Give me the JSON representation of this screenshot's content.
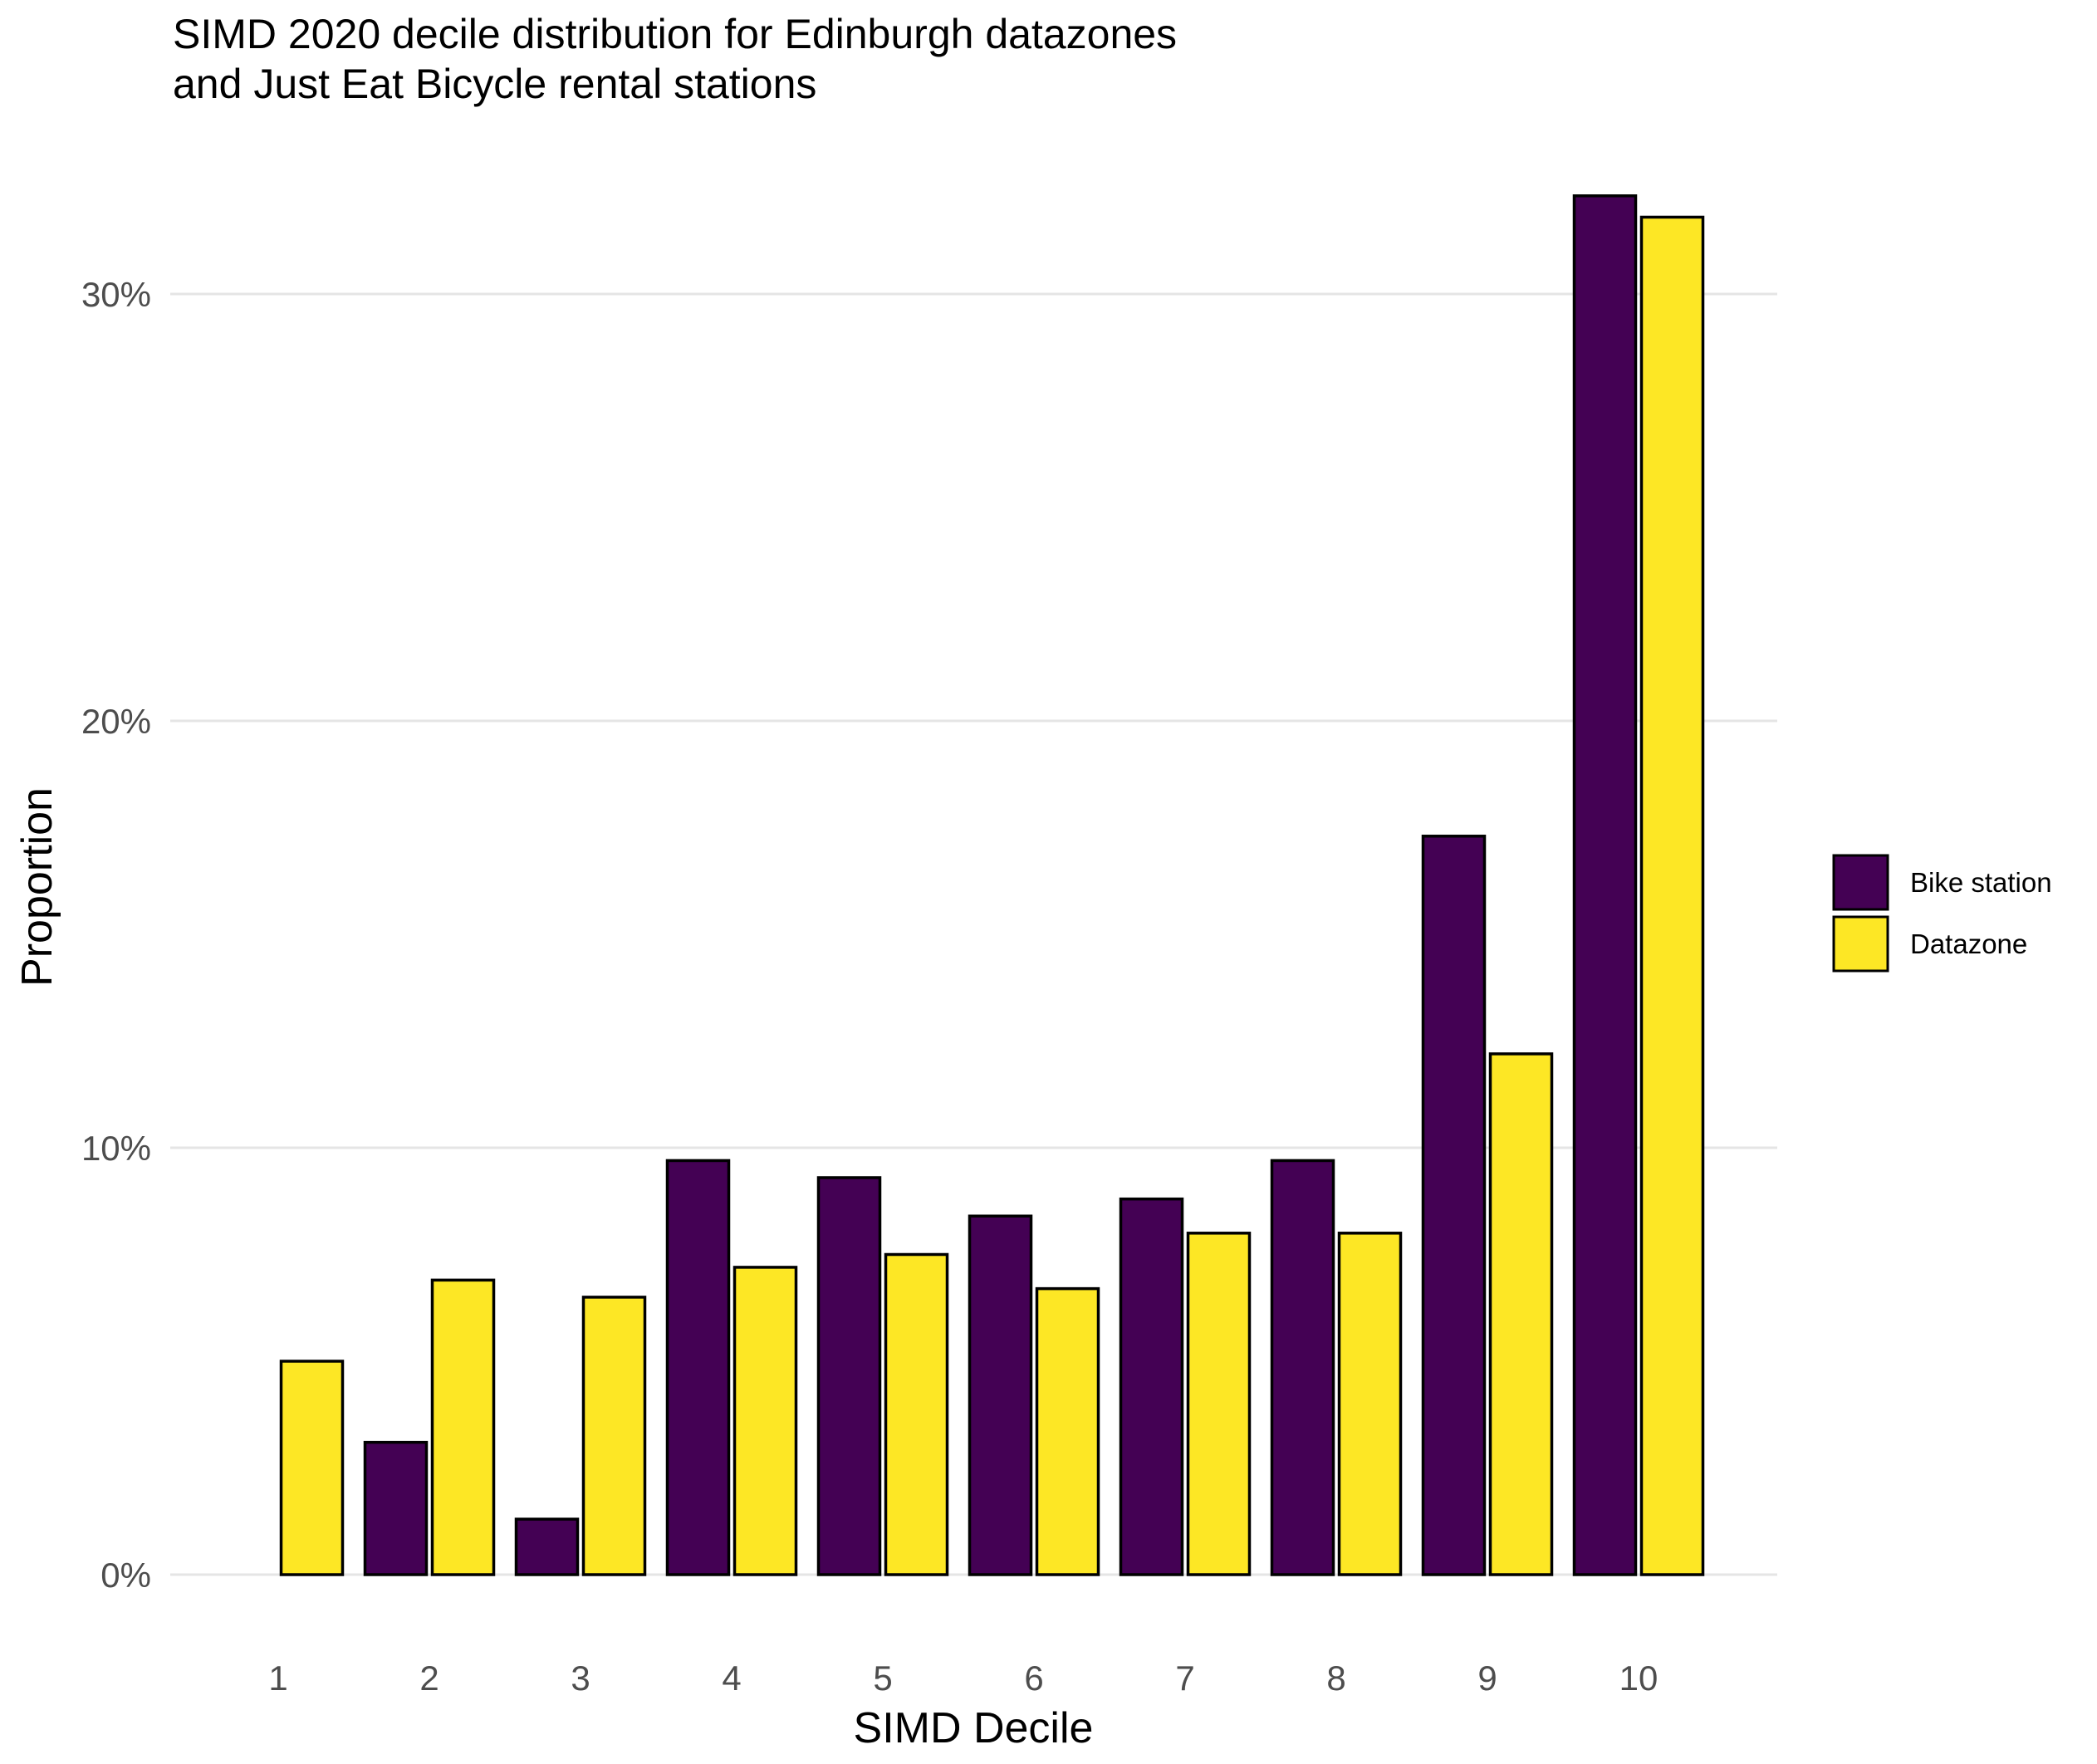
{
  "chart_data": {
    "type": "bar",
    "title_lines": [
      "SIMD 2020 decile distribution for Edinburgh datazones",
      "and Just Eat Bicycle rental stations"
    ],
    "xlabel": "SIMD Decile",
    "ylabel": "Proportion",
    "categories": [
      "1",
      "2",
      "3",
      "4",
      "5",
      "6",
      "7",
      "8",
      "9",
      "10"
    ],
    "series": [
      {
        "name": "Bike station",
        "color": "#440154",
        "values": [
          0.0,
          3.1,
          1.3,
          9.7,
          9.3,
          8.4,
          8.8,
          9.7,
          17.3,
          32.3
        ]
      },
      {
        "name": "Datazone",
        "color": "#fde725",
        "values": [
          5.0,
          6.9,
          6.5,
          7.2,
          7.5,
          6.7,
          8.0,
          8.0,
          12.2,
          31.8
        ]
      }
    ],
    "ylim": [
      0,
      32.5
    ],
    "yticks": [
      0,
      10,
      20,
      30
    ],
    "ytick_labels": [
      "0%",
      "10%",
      "20%",
      "30%"
    ],
    "grid": true,
    "legend_position": "right"
  }
}
